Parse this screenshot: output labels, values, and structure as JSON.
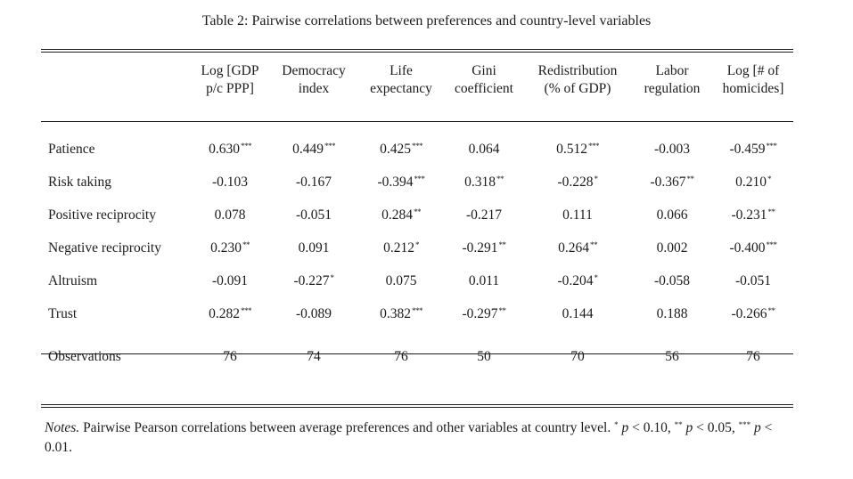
{
  "caption": "Table 2: Pairwise correlations between preferences and country-level variables",
  "columns": [
    {
      "line1": "Log [GDP",
      "line2": "p/c PPP]"
    },
    {
      "line1": "Democracy",
      "line2": "index"
    },
    {
      "line1": "Life",
      "line2": "expectancy"
    },
    {
      "line1": "Gini",
      "line2": "coefficient"
    },
    {
      "line1": "Redistribution",
      "line2": "(% of GDP)"
    },
    {
      "line1": "Labor",
      "line2": "regulation"
    },
    {
      "line1": "Log [# of",
      "line2": "homicides]"
    }
  ],
  "rows": [
    {
      "label": "Patience",
      "cells": [
        {
          "v": "0.630",
          "s": "***"
        },
        {
          "v": "0.449",
          "s": "***"
        },
        {
          "v": "0.425",
          "s": "***"
        },
        {
          "v": "0.064",
          "s": ""
        },
        {
          "v": "0.512",
          "s": "***"
        },
        {
          "v": "-0.003",
          "s": ""
        },
        {
          "v": "-0.459",
          "s": "***"
        }
      ]
    },
    {
      "label": "Risk taking",
      "cells": [
        {
          "v": "-0.103",
          "s": ""
        },
        {
          "v": "-0.167",
          "s": ""
        },
        {
          "v": "-0.394",
          "s": "***"
        },
        {
          "v": "0.318",
          "s": "**"
        },
        {
          "v": "-0.228",
          "s": "*"
        },
        {
          "v": "-0.367",
          "s": "**"
        },
        {
          "v": "0.210",
          "s": "*"
        }
      ]
    },
    {
      "label": "Positive reciprocity",
      "cells": [
        {
          "v": "0.078",
          "s": ""
        },
        {
          "v": "-0.051",
          "s": ""
        },
        {
          "v": "0.284",
          "s": "**"
        },
        {
          "v": "-0.217",
          "s": ""
        },
        {
          "v": "0.111",
          "s": ""
        },
        {
          "v": "0.066",
          "s": ""
        },
        {
          "v": "-0.231",
          "s": "**"
        }
      ]
    },
    {
      "label": "Negative reciprocity",
      "cells": [
        {
          "v": "0.230",
          "s": "**"
        },
        {
          "v": "0.091",
          "s": ""
        },
        {
          "v": "0.212",
          "s": "*"
        },
        {
          "v": "-0.291",
          "s": "**"
        },
        {
          "v": "0.264",
          "s": "**"
        },
        {
          "v": "0.002",
          "s": ""
        },
        {
          "v": "-0.400",
          "s": "***"
        }
      ]
    },
    {
      "label": "Altruism",
      "cells": [
        {
          "v": "-0.091",
          "s": ""
        },
        {
          "v": "-0.227",
          "s": "*"
        },
        {
          "v": "0.075",
          "s": ""
        },
        {
          "v": "0.011",
          "s": ""
        },
        {
          "v": "-0.204",
          "s": "*"
        },
        {
          "v": "-0.058",
          "s": ""
        },
        {
          "v": "-0.051",
          "s": ""
        }
      ]
    },
    {
      "label": "Trust",
      "cells": [
        {
          "v": "0.282",
          "s": "***"
        },
        {
          "v": "-0.089",
          "s": ""
        },
        {
          "v": "0.382",
          "s": "***"
        },
        {
          "v": "-0.297",
          "s": "**"
        },
        {
          "v": "0.144",
          "s": ""
        },
        {
          "v": "0.188",
          "s": ""
        },
        {
          "v": "-0.266",
          "s": "**"
        }
      ]
    }
  ],
  "observations": {
    "label": "Observations",
    "values": [
      "76",
      "74",
      "76",
      "50",
      "70",
      "56",
      "76"
    ]
  },
  "notes": {
    "lead": "Notes.",
    "text": "Pairwise Pearson correlations between average preferences and other variables at country level.",
    "s1": "*",
    "p1": "p",
    "t1": "< 0.10,",
    "s2": "**",
    "p2": "p",
    "t2": "< 0.05,",
    "s3": "***",
    "p3": "p",
    "t3": "< 0.01."
  }
}
